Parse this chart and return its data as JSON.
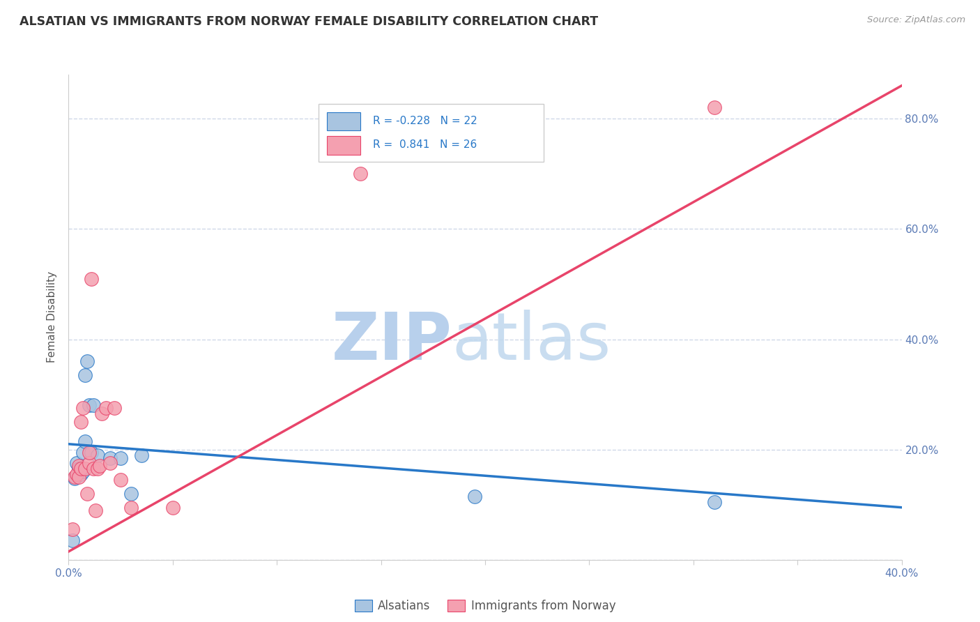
{
  "title": "ALSATIAN VS IMMIGRANTS FROM NORWAY FEMALE DISABILITY CORRELATION CHART",
  "source": "Source: ZipAtlas.com",
  "ylabel_label": "Female Disability",
  "xlim": [
    0.0,
    0.4
  ],
  "ylim": [
    0.0,
    0.88
  ],
  "x_ticks": [
    0.0,
    0.05,
    0.1,
    0.15,
    0.2,
    0.25,
    0.3,
    0.35,
    0.4
  ],
  "y_ticks": [
    0.0,
    0.2,
    0.4,
    0.6,
    0.8
  ],
  "legend_r_blue": "-0.228",
  "legend_n_blue": "22",
  "legend_r_pink": "0.841",
  "legend_n_pink": "26",
  "blue_color": "#a8c4e0",
  "pink_color": "#f4a0b0",
  "line_blue_color": "#2878c8",
  "line_pink_color": "#e8446a",
  "background_color": "#ffffff",
  "grid_color": "#d0d8e8",
  "watermark_color": "#c8d8f0",
  "alsatian_x": [
    0.002,
    0.003,
    0.004,
    0.005,
    0.005,
    0.006,
    0.006,
    0.007,
    0.007,
    0.008,
    0.008,
    0.009,
    0.01,
    0.011,
    0.012,
    0.014,
    0.02,
    0.025,
    0.03,
    0.035,
    0.195,
    0.31
  ],
  "alsatian_y": [
    0.035,
    0.148,
    0.175,
    0.16,
    0.165,
    0.155,
    0.165,
    0.16,
    0.195,
    0.215,
    0.335,
    0.36,
    0.28,
    0.195,
    0.28,
    0.19,
    0.185,
    0.185,
    0.12,
    0.19,
    0.115,
    0.105
  ],
  "norway_x": [
    0.002,
    0.003,
    0.004,
    0.005,
    0.005,
    0.006,
    0.006,
    0.007,
    0.008,
    0.009,
    0.01,
    0.01,
    0.011,
    0.012,
    0.013,
    0.014,
    0.015,
    0.016,
    0.018,
    0.02,
    0.022,
    0.025,
    0.03,
    0.05,
    0.14,
    0.31
  ],
  "norway_y": [
    0.055,
    0.15,
    0.155,
    0.15,
    0.17,
    0.165,
    0.25,
    0.275,
    0.165,
    0.12,
    0.175,
    0.195,
    0.51,
    0.165,
    0.09,
    0.165,
    0.17,
    0.265,
    0.275,
    0.175,
    0.275,
    0.145,
    0.095,
    0.095,
    0.7,
    0.82
  ],
  "blue_line_x": [
    0.0,
    0.4
  ],
  "blue_line_y": [
    0.21,
    0.095
  ],
  "pink_line_x": [
    0.0,
    0.4
  ],
  "pink_line_y": [
    0.015,
    0.86
  ]
}
